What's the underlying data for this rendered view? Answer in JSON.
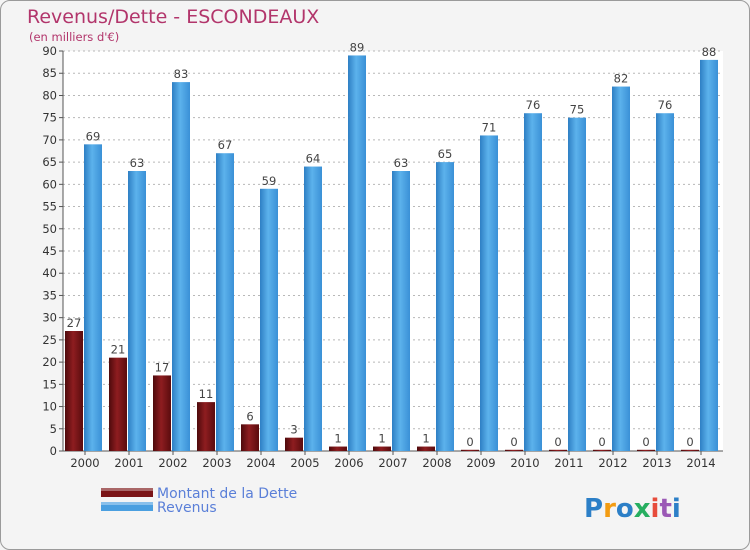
{
  "chart_data": {
    "type": "bar",
    "title": "Revenus/Dette - ESCONDEAUX",
    "subtitle": "(en milliers d'€)",
    "categories": [
      "2000",
      "2001",
      "2002",
      "2003",
      "2004",
      "2005",
      "2006",
      "2007",
      "2008",
      "2009",
      "2010",
      "2011",
      "2012",
      "2013",
      "2014"
    ],
    "series": [
      {
        "name": "Montant de la Dette",
        "color": "#7b1416",
        "values": [
          27,
          21,
          17,
          11,
          6,
          3,
          1,
          1,
          1,
          0,
          0,
          0,
          0,
          0,
          0
        ]
      },
      {
        "name": "Revenus",
        "color": "#4a9fe0",
        "values": [
          69,
          63,
          83,
          67,
          59,
          64,
          89,
          63,
          65,
          71,
          76,
          75,
          82,
          76,
          88
        ]
      }
    ],
    "ylim": [
      0,
      90
    ],
    "yticks": [
      0,
      5,
      10,
      15,
      20,
      25,
      30,
      35,
      40,
      45,
      50,
      55,
      60,
      65,
      70,
      75,
      80,
      85,
      90
    ],
    "grid": "horizontal-dashed",
    "legend_position": "bottom-left",
    "xlabel": "",
    "ylabel": ""
  },
  "logo": {
    "letters": [
      "P",
      "r",
      "o",
      "x",
      "i",
      "t",
      "i"
    ],
    "colors": [
      "#2c7fc7",
      "#f39c12",
      "#2c7fc7",
      "#27ae60",
      "#e74c3c",
      "#9b59b6",
      "#2c7fc7"
    ]
  }
}
